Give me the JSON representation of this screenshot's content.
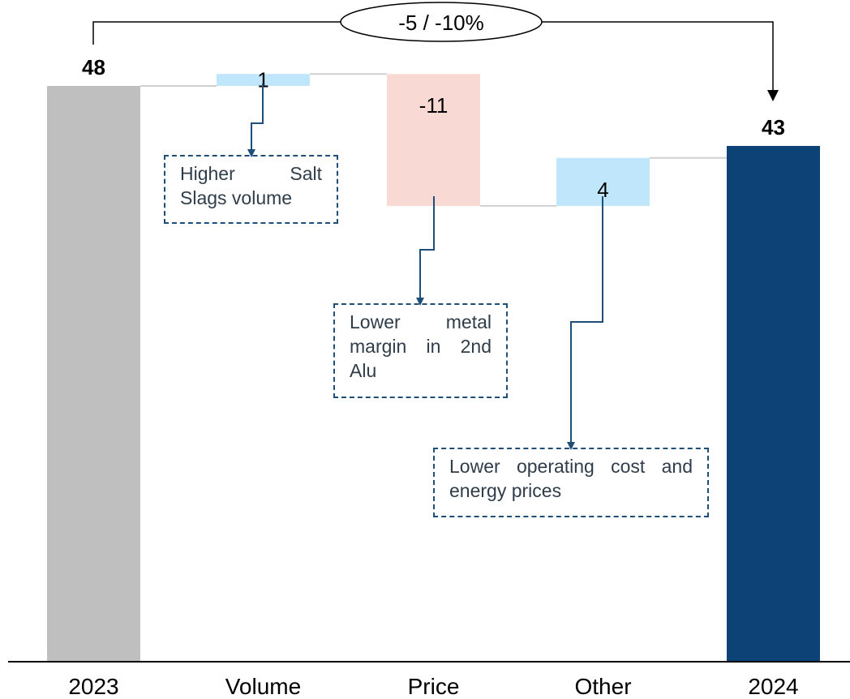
{
  "chart_data": {
    "type": "waterfall",
    "categories": [
      "2023",
      "Volume",
      "Price",
      "Other",
      "2024"
    ],
    "values": [
      48,
      1,
      -11,
      4,
      43
    ],
    "value_labels": [
      "48",
      "1",
      "-11",
      "4",
      "43"
    ],
    "kinds": [
      "total",
      "delta",
      "delta",
      "delta",
      "total"
    ],
    "ylim": [
      0,
      50
    ],
    "grid": false,
    "change_label": "-5 / -10%",
    "notes": [
      {
        "category": "Volume",
        "text": "Higher Salt Slags volume"
      },
      {
        "category": "Price",
        "text": "Lower metal margin in 2nd Alu"
      },
      {
        "category": "Other",
        "text": "Lower operating cost and energy prices"
      }
    ]
  },
  "colors": {
    "total_start": "#bfbfbf",
    "total_end": "#0c4275",
    "increase": "#bfe6fb",
    "decrease": "#f9d9d3",
    "connector": "#d0d0d0",
    "arrow": "#1f4e79",
    "text": "#000000",
    "note_text": "#2f3d4a"
  }
}
